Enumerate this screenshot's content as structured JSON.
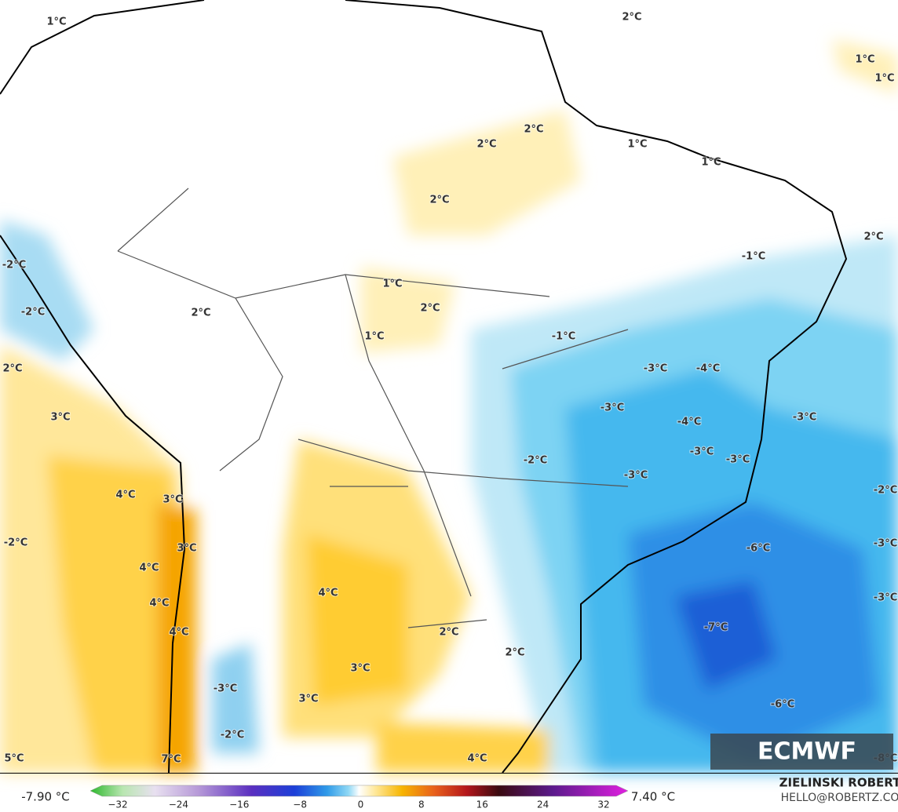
{
  "contour_labels": [
    "1°C",
    "2°C",
    "1°C",
    "1°C",
    "2°C",
    "2°C",
    "1°C",
    "1°C",
    "2°C",
    "2°C",
    "-1°C",
    "-2°C",
    "1°C",
    "2°C",
    "-2°C",
    "2°C",
    "1°C",
    "-1°C",
    "-3°C",
    "-4°C",
    "2°C",
    "-3°C",
    "3°C",
    "-3°C",
    "-4°C",
    "-3°C",
    "-2°C",
    "-3°C",
    "-3°C",
    "-2°C",
    "4°C",
    "3°C",
    "-2°C",
    "3°C",
    "-6°C",
    "-3°C",
    "4°C",
    "4°C",
    "-3°C",
    "4°C",
    "-7°C",
    "4°C",
    "2°C",
    "2°C",
    "3°C",
    "-3°C",
    "3°C",
    "-6°C",
    "-2°C",
    "5°C",
    "7°C",
    "4°C",
    "-8°C"
  ],
  "logo": "ECMWF",
  "colorbar": {
    "min_label": "-7.90 °C",
    "max_label": "7.40 °C",
    "ticks": [
      "−32",
      "−24",
      "−16",
      "−8",
      "0",
      "8",
      "16",
      "24",
      "32"
    ]
  },
  "credits": {
    "author": "ZIELINSKI ROBERT",
    "contact": "HELLO@ROBERTZ.CO"
  }
}
